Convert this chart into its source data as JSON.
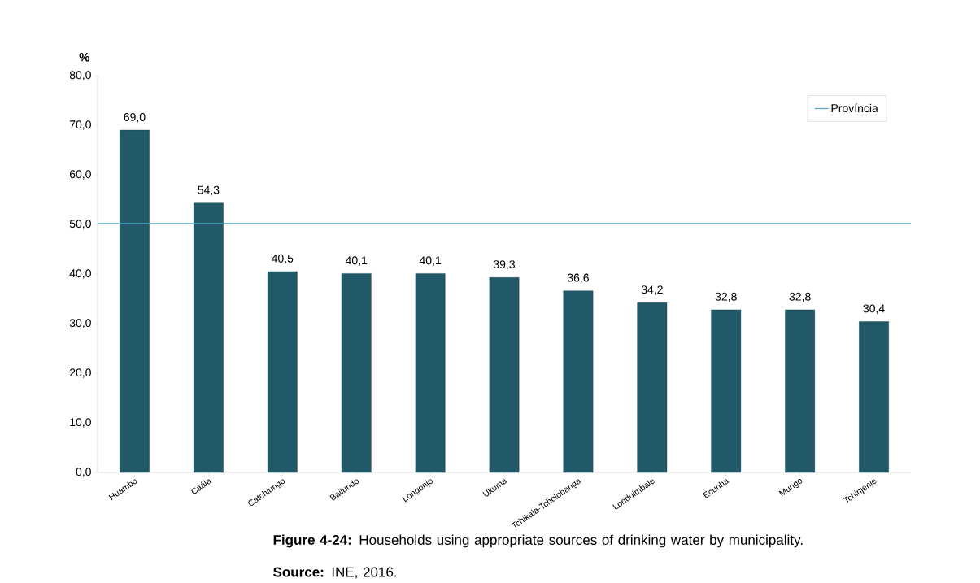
{
  "chart_data": {
    "type": "bar",
    "ylabel": "%",
    "categories": [
      "Huambo",
      "Caála",
      "Catchiungo",
      "Bailundo",
      "Longonjo",
      "Ukuma",
      "Tchikala-Tcholohanga",
      "Londuimbale",
      "Ecunha",
      "Mungo",
      "Tchinjenje"
    ],
    "values": [
      69.0,
      54.3,
      40.5,
      40.1,
      40.1,
      39.3,
      36.6,
      34.2,
      32.8,
      32.8,
      30.4
    ],
    "value_labels": [
      "69,0",
      "54,3",
      "40,5",
      "40,1",
      "40,1",
      "39,3",
      "36,6",
      "34,2",
      "32,8",
      "32,8",
      "30,4"
    ],
    "color": "#215968",
    "ylim": [
      0,
      80
    ],
    "yticks": [
      {
        "value": 0,
        "label": "0,0"
      },
      {
        "value": 10,
        "label": "10,0"
      },
      {
        "value": 20,
        "label": "20,0"
      },
      {
        "value": 30,
        "label": "30,0"
      },
      {
        "value": 40,
        "label": "40,0"
      },
      {
        "value": 50,
        "label": "50,0"
      },
      {
        "value": 60,
        "label": "60,0"
      },
      {
        "value": 70,
        "label": "70,0"
      },
      {
        "value": 80,
        "label": "80,0"
      }
    ],
    "ref_lines": [
      {
        "axis": "y",
        "value": 50.2,
        "label": "Província",
        "color": "#4bacc6"
      }
    ],
    "legend": "top right",
    "grid": false,
    "annotations": [
      "**Figure 4-24:** Households using appropriate sources of drinking water by municipality.",
      "**Source:** INE, 2016."
    ]
  }
}
